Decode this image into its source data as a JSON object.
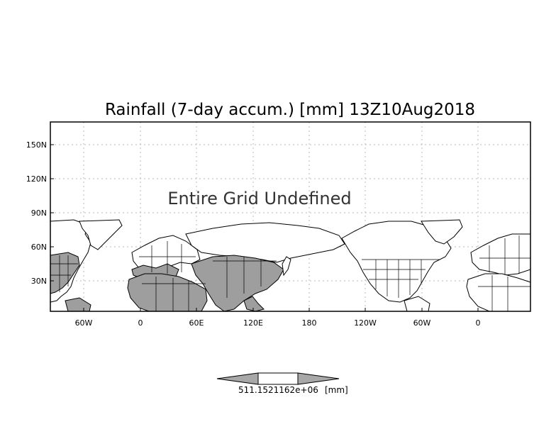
{
  "title": "Rainfall (7-day accum.) [mm] 13Z10Aug2018",
  "message": "Entire Grid Undefined",
  "y_ticks": [
    "150N",
    "120N",
    "90N",
    "60N",
    "30N"
  ],
  "x_ticks": [
    "60W",
    "0",
    "60E",
    "120E",
    "180",
    "120W",
    "60W",
    "0"
  ],
  "colorbar": {
    "label": "511.1521162e+06",
    "unit": "[mm]",
    "colors": {
      "end": "#a8a8a8",
      "middle": "#ffffff"
    }
  },
  "colors": {
    "land_default": "#ffffff",
    "land_shaded": "#9e9e9e",
    "grid": "#b8b8b8"
  }
}
